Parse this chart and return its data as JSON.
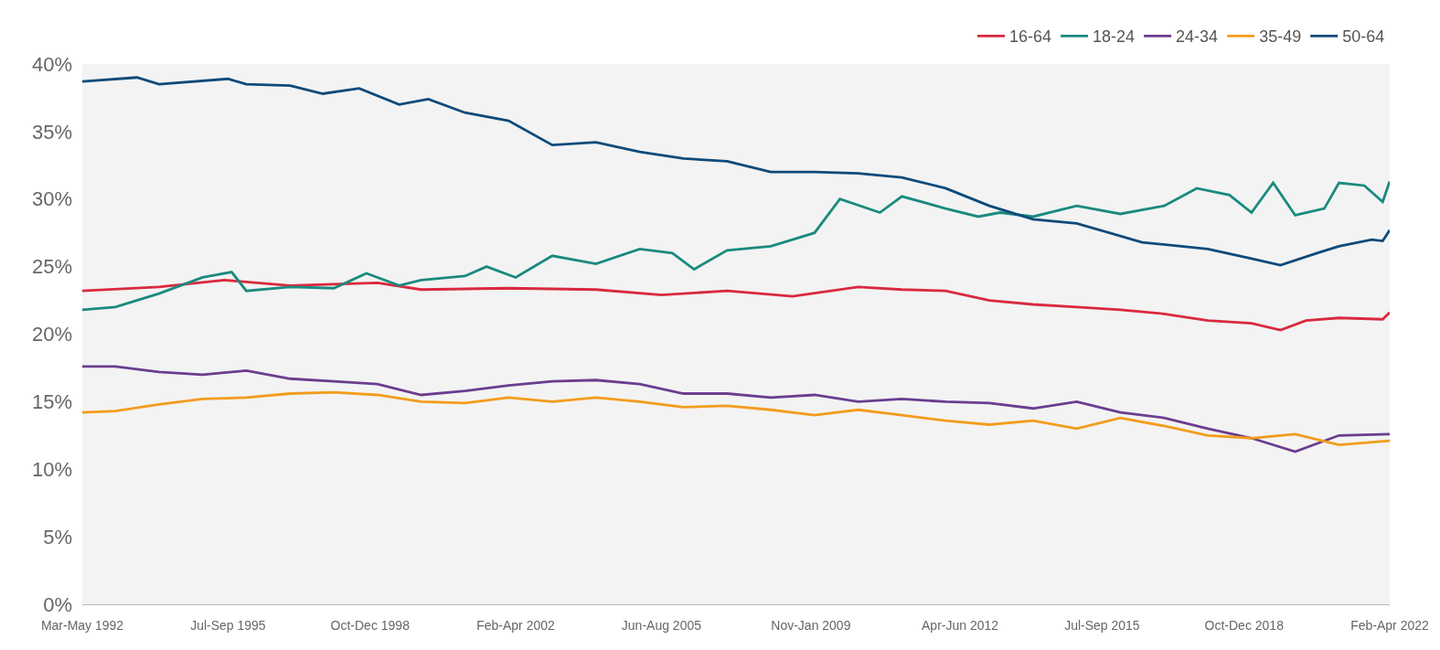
{
  "chart_data": {
    "type": "line",
    "legend": "top right",
    "grid": false,
    "marker": "none",
    "line_style": "solid",
    "xlim": [
      "1992-05",
      "2022-04"
    ],
    "xticks": [
      {
        "value": "1992-05",
        "label": "Mar-May 1992"
      },
      {
        "value": "1995-09",
        "label": "Jul-Sep 1995"
      },
      {
        "value": "1998-12",
        "label": "Oct-Dec 1998"
      },
      {
        "value": "2002-04",
        "label": "Feb-Apr 2002"
      },
      {
        "value": "2005-08",
        "label": "Jun-Aug 2005"
      },
      {
        "value": "2009-01",
        "label": "Nov-Jan 2009"
      },
      {
        "value": "2012-06",
        "label": "Apr-Jun 2012"
      },
      {
        "value": "2015-09",
        "label": "Jul-Sep 2015"
      },
      {
        "value": "2018-12",
        "label": "Oct-Dec 2018"
      },
      {
        "value": "2022-04",
        "label": "Feb-Apr 2022"
      }
    ],
    "ylim": [
      0,
      40
    ],
    "yticks": [
      {
        "value": 0,
        "label": "0%"
      },
      {
        "value": 5,
        "label": "5%"
      },
      {
        "value": 10,
        "label": "10%"
      },
      {
        "value": 15,
        "label": "15%"
      },
      {
        "value": 20,
        "label": "20%"
      },
      {
        "value": 25,
        "label": "25%"
      },
      {
        "value": 30,
        "label": "30%"
      },
      {
        "value": 35,
        "label": "35%"
      },
      {
        "value": 40,
        "label": "40%"
      }
    ],
    "series": [
      {
        "name": "16-64",
        "color": "#d9293e",
        "x": [
          "1992-05",
          "1994-02",
          "1995-08",
          "1997-02",
          "1999-02",
          "2000-02",
          "2002-02",
          "2004-02",
          "2005-08",
          "2007-02",
          "2008-08",
          "2010-02",
          "2011-02",
          "2012-02",
          "2013-02",
          "2014-02",
          "2015-02",
          "2016-02",
          "2017-02",
          "2018-02",
          "2019-02",
          "2019-10",
          "2020-05",
          "2021-02",
          "2022-02",
          "2022-04"
        ],
        "values": [
          23.2,
          23.5,
          24.0,
          23.6,
          23.8,
          23.3,
          23.4,
          23.3,
          22.9,
          23.2,
          22.8,
          23.5,
          23.3,
          23.2,
          22.5,
          22.2,
          22.0,
          21.8,
          21.5,
          21.0,
          20.8,
          20.3,
          21.0,
          21.2,
          21.1,
          21.6
        ]
      },
      {
        "name": "18-24",
        "color": "#1a8a7e",
        "x": [
          "1992-05",
          "1993-02",
          "1994-02",
          "1995-02",
          "1995-10",
          "1996-02",
          "1997-02",
          "1998-02",
          "1998-11",
          "1999-08",
          "2000-02",
          "2001-02",
          "2001-08",
          "2002-04",
          "2003-02",
          "2004-02",
          "2005-02",
          "2005-11",
          "2006-05",
          "2007-02",
          "2008-02",
          "2009-02",
          "2009-09",
          "2010-08",
          "2011-02",
          "2012-02",
          "2012-11",
          "2013-05",
          "2014-02",
          "2015-02",
          "2016-02",
          "2017-02",
          "2017-11",
          "2018-08",
          "2019-02",
          "2019-08",
          "2020-02",
          "2020-10",
          "2021-02",
          "2021-09",
          "2022-02",
          "2022-04"
        ],
        "values": [
          21.8,
          22.0,
          23.0,
          24.2,
          24.6,
          23.2,
          23.5,
          23.4,
          24.5,
          23.6,
          24.0,
          24.3,
          25.0,
          24.2,
          25.8,
          25.2,
          26.3,
          26.0,
          24.8,
          26.2,
          26.5,
          27.5,
          30.0,
          29.0,
          30.2,
          29.3,
          28.7,
          29.0,
          28.7,
          29.5,
          28.9,
          29.5,
          30.8,
          30.3,
          29.0,
          31.2,
          28.8,
          29.3,
          31.2,
          31.0,
          29.8,
          31.3
        ]
      },
      {
        "name": "24-34",
        "color": "#6b3d8f",
        "x": [
          "1992-05",
          "1993-02",
          "1994-02",
          "1995-02",
          "1996-02",
          "1997-02",
          "1998-02",
          "1999-02",
          "2000-02",
          "2001-02",
          "2002-02",
          "2003-02",
          "2004-02",
          "2005-02",
          "2006-02",
          "2007-02",
          "2008-02",
          "2009-02",
          "2010-02",
          "2011-02",
          "2012-02",
          "2013-02",
          "2014-02",
          "2015-02",
          "2016-02",
          "2017-02",
          "2018-02",
          "2019-02",
          "2020-02",
          "2021-02",
          "2022-04"
        ],
        "values": [
          17.6,
          17.6,
          17.2,
          17.0,
          17.3,
          16.7,
          16.5,
          16.3,
          15.5,
          15.8,
          16.2,
          16.5,
          16.6,
          16.3,
          15.6,
          15.6,
          15.3,
          15.5,
          15.0,
          15.2,
          15.0,
          14.9,
          14.5,
          15.0,
          14.2,
          13.8,
          13.0,
          12.3,
          11.3,
          12.5,
          12.6
        ]
      },
      {
        "name": "35-49",
        "color": "#f39c1c",
        "x": [
          "1992-05",
          "1993-02",
          "1994-02",
          "1995-02",
          "1996-02",
          "1997-02",
          "1998-02",
          "1999-02",
          "2000-02",
          "2001-02",
          "2002-02",
          "2003-02",
          "2004-02",
          "2005-02",
          "2006-02",
          "2007-02",
          "2008-02",
          "2009-02",
          "2010-02",
          "2011-02",
          "2012-02",
          "2013-02",
          "2014-02",
          "2015-02",
          "2016-02",
          "2017-02",
          "2018-02",
          "2019-02",
          "2020-02",
          "2021-02",
          "2022-04"
        ],
        "values": [
          14.2,
          14.3,
          14.8,
          15.2,
          15.3,
          15.6,
          15.7,
          15.5,
          15.0,
          14.9,
          15.3,
          15.0,
          15.3,
          15.0,
          14.6,
          14.7,
          14.4,
          14.0,
          14.4,
          14.0,
          13.6,
          13.3,
          13.6,
          13.0,
          13.8,
          13.2,
          12.5,
          12.3,
          12.6,
          11.8,
          12.1
        ]
      },
      {
        "name": "50-64",
        "color": "#0d4a7a",
        "x": [
          "1992-05",
          "1993-08",
          "1994-02",
          "1995-09",
          "1996-02",
          "1997-02",
          "1997-11",
          "1998-09",
          "1999-08",
          "2000-04",
          "2001-02",
          "2002-02",
          "2003-02",
          "2004-02",
          "2005-02",
          "2006-02",
          "2007-02",
          "2008-02",
          "2009-02",
          "2010-02",
          "2011-02",
          "2012-02",
          "2013-02",
          "2014-02",
          "2015-02",
          "2016-08",
          "2018-02",
          "2019-02",
          "2019-10",
          "2020-08",
          "2021-02",
          "2021-11",
          "2022-02",
          "2022-04"
        ],
        "values": [
          38.7,
          39.0,
          38.5,
          38.9,
          38.5,
          38.4,
          37.8,
          38.2,
          37.0,
          37.4,
          36.4,
          35.8,
          34.0,
          34.2,
          33.5,
          33.0,
          32.8,
          32.0,
          32.0,
          31.9,
          31.6,
          30.8,
          29.5,
          28.5,
          28.2,
          26.8,
          26.3,
          25.6,
          25.1,
          26.0,
          26.5,
          27.0,
          26.9,
          27.7
        ]
      }
    ]
  }
}
